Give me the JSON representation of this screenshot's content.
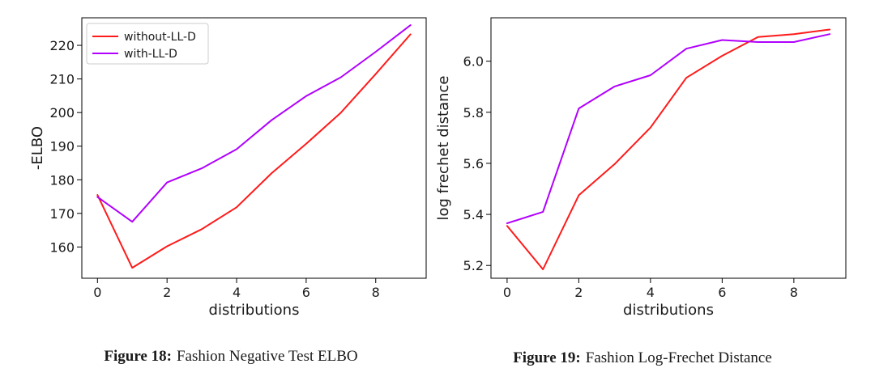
{
  "figures": [
    {
      "number": "Figure 18:",
      "caption": "Fashion Negative Test ELBO"
    },
    {
      "number": "Figure 19:",
      "caption": "Fashion Log-Frechet Distance"
    }
  ],
  "chart_data": [
    {
      "type": "line",
      "title": "",
      "xlabel": "distributions",
      "ylabel": "-ELBO",
      "xlim": [
        -0.45,
        9.45
      ],
      "ylim": [
        150.7,
        228.2
      ],
      "xticks": [
        0,
        2,
        4,
        6,
        8
      ],
      "xtick_labels": [
        "0",
        "2",
        "4",
        "6",
        "8"
      ],
      "yticks": [
        160,
        170,
        180,
        190,
        200,
        210,
        220
      ],
      "ytick_labels": [
        "160",
        "170",
        "180",
        "190",
        "200",
        "210",
        "220"
      ],
      "grid": false,
      "legend_position": "top-left",
      "x": [
        0,
        1,
        2,
        3,
        4,
        5,
        6,
        7,
        8,
        9
      ],
      "series": [
        {
          "name": "without-LL-D",
          "color": "#ff1a1a",
          "values": [
            175.5,
            153.8,
            160.2,
            165.3,
            171.8,
            181.9,
            190.7,
            200.0,
            211.5,
            223.3
          ]
        },
        {
          "name": "with-LL-D",
          "color": "#b000ff",
          "values": [
            174.9,
            167.5,
            179.2,
            183.4,
            189.1,
            197.7,
            204.9,
            210.5,
            218.1,
            226.0
          ]
        }
      ]
    },
    {
      "type": "line",
      "title": "",
      "xlabel": "distributions",
      "ylabel": "log frechet distance",
      "xlim": [
        -0.45,
        9.45
      ],
      "ylim": [
        5.15,
        6.17
      ],
      "xticks": [
        0,
        2,
        4,
        6,
        8
      ],
      "xtick_labels": [
        "0",
        "2",
        "4",
        "6",
        "8"
      ],
      "yticks": [
        5.2,
        5.4,
        5.6,
        5.8,
        6.0
      ],
      "ytick_labels": [
        "5.2",
        "5.4",
        "5.6",
        "5.8",
        "6.0"
      ],
      "grid": false,
      "legend_position": "none",
      "x": [
        0,
        1,
        2,
        3,
        4,
        5,
        6,
        7,
        8,
        9
      ],
      "series": [
        {
          "name": "without-LL-D",
          "color": "#ff1a1a",
          "values": [
            5.355,
            5.185,
            5.475,
            5.597,
            5.74,
            5.935,
            6.021,
            6.095,
            6.106,
            6.124
          ]
        },
        {
          "name": "with-LL-D",
          "color": "#b000ff",
          "values": [
            5.365,
            5.41,
            5.815,
            5.901,
            5.945,
            6.049,
            6.083,
            6.075,
            6.075,
            6.106
          ]
        }
      ]
    }
  ]
}
